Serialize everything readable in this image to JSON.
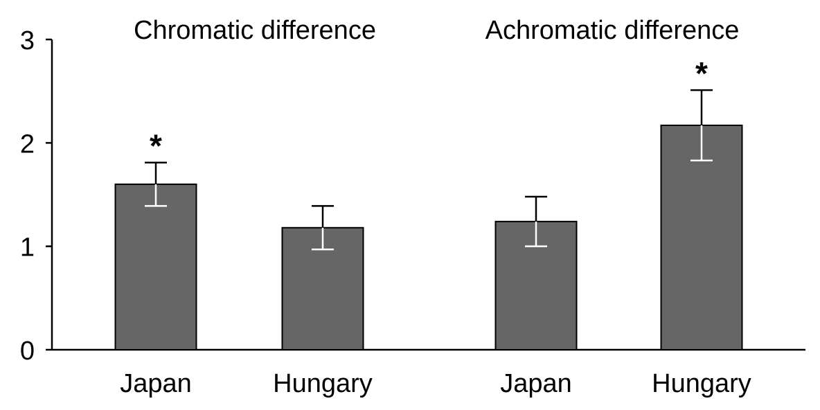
{
  "chart_data": {
    "type": "bar",
    "title": "",
    "xlabel": "",
    "ylabel": "",
    "ylim": [
      0,
      3
    ],
    "yticks": [
      0,
      1,
      2,
      3
    ],
    "grid": false,
    "bar_color": "#666666",
    "groups": [
      {
        "title": "Chromatic difference",
        "categories": [
          "Japan",
          "Hungary"
        ],
        "values": [
          1.6,
          1.18
        ],
        "errors": [
          0.21,
          0.21
        ],
        "significance": [
          "*",
          ""
        ]
      },
      {
        "title": "Achromatic difference",
        "categories": [
          "Japan",
          "Hungary"
        ],
        "values": [
          1.24,
          2.17
        ],
        "errors": [
          0.24,
          0.34
        ],
        "significance": [
          "",
          "*"
        ]
      }
    ]
  }
}
